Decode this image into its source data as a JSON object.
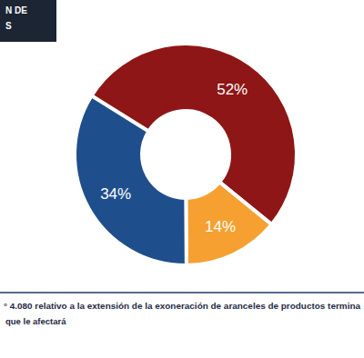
{
  "chart_data": {
    "type": "pie",
    "values": [
      52,
      14,
      34
    ],
    "value_labels": [
      "52%",
      "14%",
      "34%"
    ],
    "colors": [
      "#8e1616",
      "#f5a031",
      "#1f4e8c"
    ],
    "data_labels": true
  },
  "header": {
    "lines": [
      "N DE",
      "S"
    ]
  },
  "footer": {
    "lines": [
      "° 4.080 relativo a la extensión de la exoneración de aranceles de productos termina",
      "que le afectará"
    ]
  }
}
